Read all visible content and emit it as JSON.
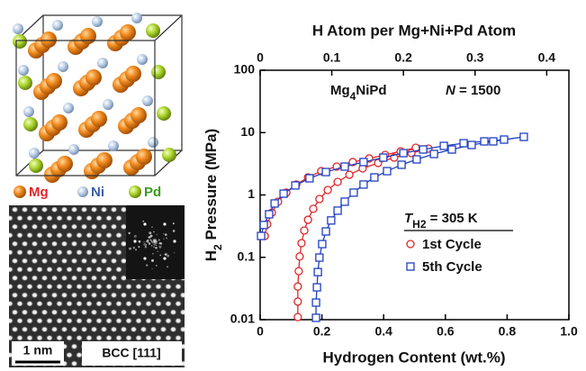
{
  "panels": {
    "atoms": [
      "Mg",
      "Ni",
      "Pd"
    ],
    "scale_bar": "1 nm",
    "zone_axis": "BCC [111]"
  },
  "chart_data": {
    "type": "line",
    "x_label": "Hydrogen Content (wt.%)",
    "x2_label": "H Atom per Mg+Ni+Pd Atom",
    "y_label": [
      "H",
      "2",
      " Pressure (MPa)"
    ],
    "annotations": [
      [
        "Mg",
        "4",
        "NiPd"
      ],
      [
        "N",
        " = 1500"
      ]
    ],
    "legend_title": [
      "T",
      "H2",
      " = 305 K"
    ],
    "xlim": [
      0,
      1
    ],
    "xticks": [
      0,
      0.2,
      0.4,
      0.6,
      0.8,
      {
        "value": 1,
        "label": "1.0"
      }
    ],
    "x2lim": [
      0,
      0.431
    ],
    "x2ticks": [
      0,
      0.1,
      0.2,
      0.3,
      0.4
    ],
    "ylim": [
      0.01,
      100
    ],
    "yticks": [
      0.01,
      0.1,
      1,
      10,
      100
    ],
    "log_y": true,
    "series": [
      {
        "name": "1st Cycle",
        "color": "#e0262a",
        "marker": "circle",
        "x": [
          0.122,
          0.122,
          0.122,
          0.125,
          0.128,
          0.134,
          0.143,
          0.155,
          0.172,
          0.192,
          0.219,
          0.251,
          0.289,
          0.332,
          0.382,
          0.434,
          0.49,
          0.545,
          0.504,
          0.455,
          0.405,
          0.353,
          0.3,
          0.248,
          0.198,
          0.155,
          0.117,
          0.085,
          0.058,
          0.038,
          0.023,
          0.015
        ],
        "values": [
          0.011,
          0.0195,
          0.034,
          0.06,
          0.103,
          0.169,
          0.269,
          0.4,
          0.6,
          0.86,
          1.2,
          1.62,
          2.11,
          2.67,
          3.26,
          3.97,
          4.69,
          5.54,
          5.73,
          5.01,
          4.39,
          3.85,
          3.37,
          2.85,
          2.41,
          1.91,
          1.47,
          1.09,
          0.78,
          0.52,
          0.34,
          0.22
        ]
      },
      {
        "name": "5th Cycle",
        "color": "#1f3fbf",
        "marker": "square",
        "x": [
          0.181,
          0.181,
          0.184,
          0.187,
          0.192,
          0.201,
          0.213,
          0.23,
          0.251,
          0.274,
          0.303,
          0.335,
          0.37,
          0.411,
          0.458,
          0.507,
          0.563,
          0.621,
          0.685,
          0.755,
          0.854,
          0.79,
          0.726,
          0.659,
          0.595,
          0.528,
          0.464,
          0.399,
          0.335,
          0.274,
          0.213,
          0.16,
          0.114,
          0.076,
          0.047,
          0.029,
          0.012,
          0.003
        ],
        "values": [
          0.0107,
          0.0188,
          0.033,
          0.058,
          0.099,
          0.163,
          0.26,
          0.39,
          0.56,
          0.78,
          1.09,
          1.47,
          1.91,
          2.41,
          3.05,
          3.72,
          4.54,
          5.36,
          6.33,
          7.23,
          8.53,
          7.73,
          7.23,
          6.76,
          6.12,
          5.36,
          4.69,
          3.97,
          3.37,
          2.85,
          2.33,
          1.85,
          1.42,
          1.05,
          0.73,
          0.49,
          0.33,
          0.22
        ]
      }
    ]
  }
}
